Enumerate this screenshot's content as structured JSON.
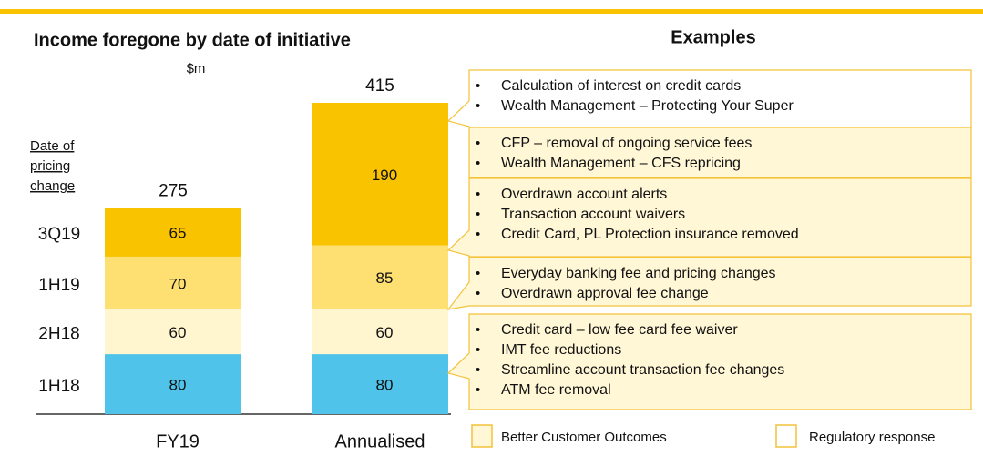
{
  "chart_data": {
    "type": "stacked_bar",
    "title": "Income foregone by date of initiative",
    "y_unit": "$m",
    "row_header": [
      "Date of",
      "pricing",
      "change"
    ],
    "categories": [
      "FY19",
      "Annualised"
    ],
    "series": [
      {
        "name": "1H18",
        "color": "#4fc3ea",
        "values": [
          80,
          80
        ]
      },
      {
        "name": "2H18",
        "color": "#fff5cf",
        "values": [
          60,
          60
        ]
      },
      {
        "name": "1H19",
        "color": "#fedf72",
        "values": [
          70,
          85
        ]
      },
      {
        "name": "3Q19",
        "color": "#f9c300",
        "values": [
          65,
          190
        ]
      }
    ],
    "totals": [
      275,
      415
    ],
    "ylim": [
      0,
      415
    ],
    "examples_title": "Examples",
    "examples": [
      {
        "color": "#ffffff",
        "items": [
          "Calculation of interest on credit cards",
          "Wealth Management – Protecting Your Super"
        ]
      },
      {
        "color": "#fff7d6",
        "items": [
          "CFP – removal of ongoing service fees",
          "Wealth Management – CFS repricing"
        ]
      },
      {
        "color": "#fff7d6",
        "items": [
          "Overdrawn account alerts",
          "Transaction account waivers",
          "Credit Card, PL Protection insurance removed"
        ]
      },
      {
        "color": "#fff7d6",
        "items": [
          "Everyday banking fee and pricing changes",
          "Overdrawn approval fee change"
        ]
      },
      {
        "color": "#fff7d6",
        "items": [
          "Credit card – low fee card fee waiver",
          "IMT fee reductions",
          "Streamline account transaction fee changes",
          "ATM fee removal"
        ]
      }
    ],
    "legend": [
      {
        "name": "Better Customer Outcomes",
        "color": "#fff7d6"
      },
      {
        "name": "Regulatory response",
        "color": "#ffffff"
      }
    ]
  }
}
